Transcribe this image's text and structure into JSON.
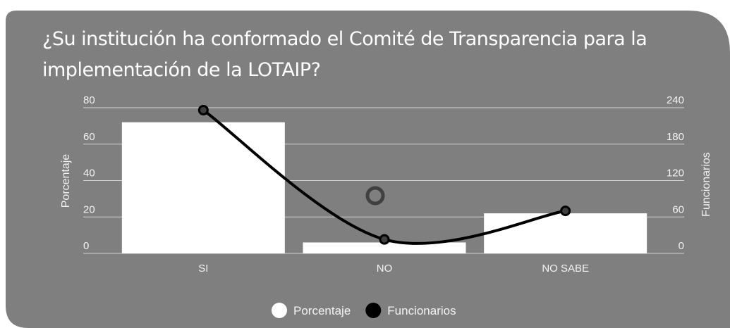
{
  "chart_data": {
    "type": "bar_line",
    "title": "¿Su institución ha conformado el Comité de Transparencia para la implementación de la LOTAIP?",
    "categories": [
      "SI",
      "NO",
      "NO SABE"
    ],
    "series": [
      {
        "name": "Porcentaje",
        "color": "#ffffff",
        "type": "bar",
        "values": [
          72,
          6,
          22
        ]
      },
      {
        "name": "Funcionarios",
        "color": "#000000",
        "type": "line",
        "axis": "y2",
        "values": [
          236,
          23,
          70
        ]
      }
    ],
    "ylabel": "Porcentaje",
    "y2label": "Funcionarios",
    "ylim": [
      0,
      80
    ],
    "yticks": [
      0,
      20,
      40,
      60,
      80
    ],
    "y2lim": [
      0,
      240
    ],
    "y2ticks": [
      0,
      60,
      120,
      180,
      240
    ],
    "grid": true,
    "legend": "bottom"
  }
}
